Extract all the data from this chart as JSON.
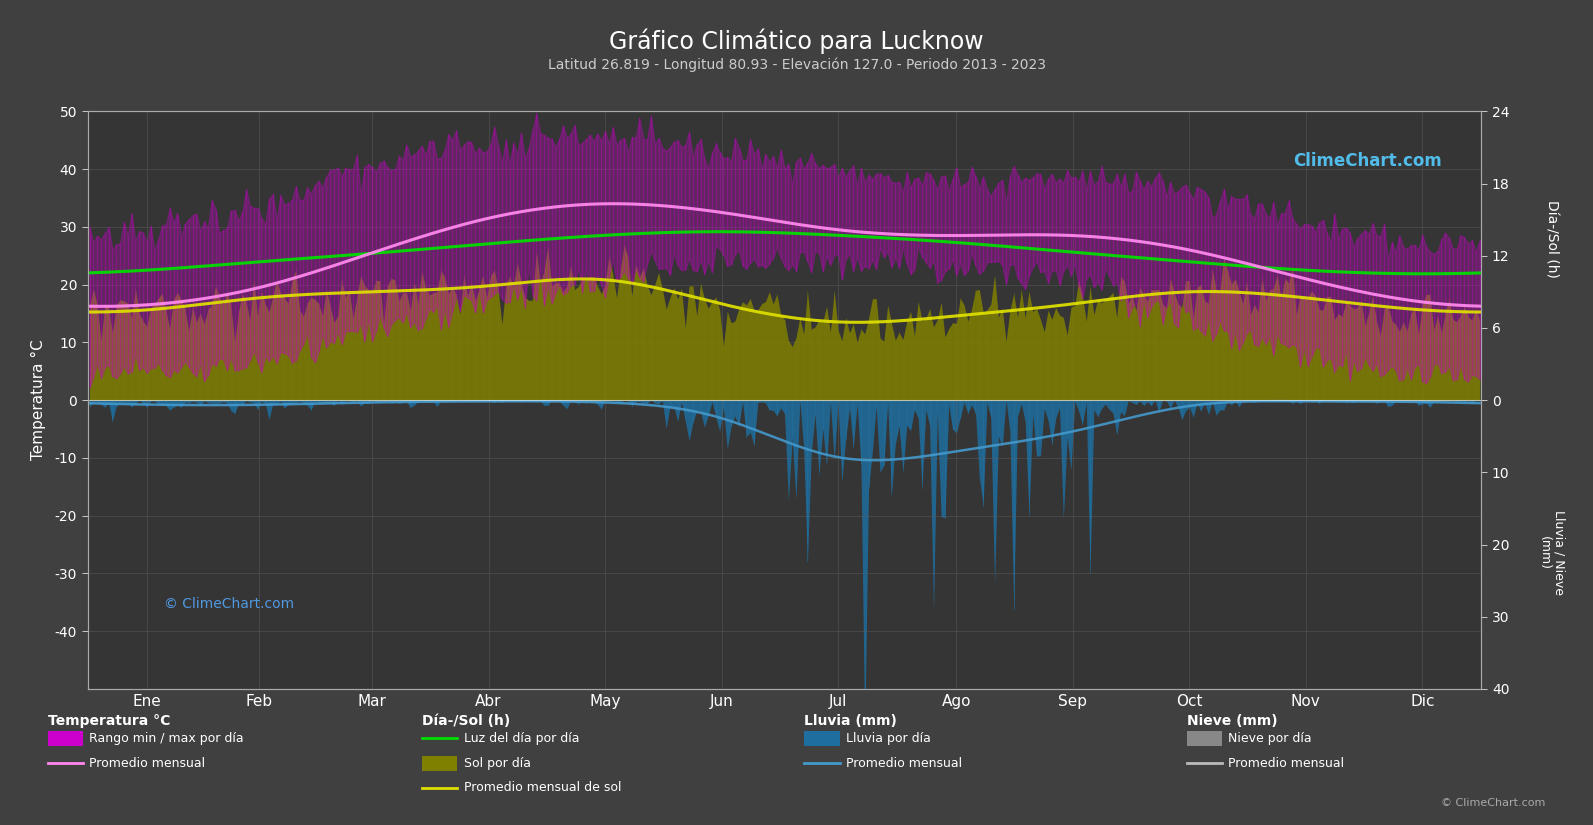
{
  "title": "Gráfico Climático para Lucknow",
  "subtitle": "Latitud 26.819 - Longitud 80.93 - Elevación 127.0 - Periodo 2013 - 2023",
  "months": [
    "Ene",
    "Feb",
    "Mar",
    "Abr",
    "May",
    "Jun",
    "Jul",
    "Ago",
    "Sep",
    "Oct",
    "Nov",
    "Dic"
  ],
  "background_color": "#404040",
  "plot_bg_color": "#353535",
  "temp_avg_monthly": [
    16.5,
    19.5,
    25.5,
    31.5,
    34.0,
    32.5,
    29.5,
    28.5,
    28.5,
    26.0,
    21.0,
    17.0
  ],
  "temp_max_monthly": [
    22.5,
    26.0,
    33.0,
    39.0,
    41.5,
    38.5,
    33.5,
    32.5,
    32.5,
    31.0,
    27.0,
    22.5
  ],
  "temp_min_monthly": [
    9.5,
    12.0,
    17.0,
    23.5,
    26.5,
    27.0,
    26.0,
    25.5,
    24.5,
    19.5,
    13.5,
    9.5
  ],
  "temp_max_daily_high": [
    29,
    33,
    41,
    45,
    46,
    43,
    40,
    38,
    38,
    36,
    31,
    27
  ],
  "temp_min_daily_low": [
    5,
    7,
    12,
    17,
    21,
    24,
    24,
    23,
    21,
    14,
    8,
    5
  ],
  "daylight_monthly": [
    10.8,
    11.5,
    12.2,
    13.0,
    13.7,
    14.0,
    13.7,
    13.1,
    12.3,
    11.5,
    10.8,
    10.5
  ],
  "sunshine_monthly": [
    7.5,
    8.5,
    9.0,
    9.5,
    10.0,
    8.0,
    6.5,
    7.0,
    8.0,
    9.0,
    8.5,
    7.5
  ],
  "rain_monthly": [
    19,
    18,
    10,
    5,
    10,
    75,
    245,
    220,
    130,
    25,
    5,
    8
  ],
  "snow_monthly": [
    0,
    0,
    0,
    0,
    0,
    0,
    0,
    0,
    0,
    0,
    0,
    0
  ],
  "grid_color": "#606060",
  "daylight_color": "#00dd00",
  "sunshine_fill_color": "#808000",
  "sunshine_line_color": "#dddd00",
  "rain_fill_color": "#1e6ea0",
  "rain_line_color": "#4499cc",
  "snow_fill_color": "#999999",
  "snow_line_color": "#cccccc",
  "temp_range_line_color": "#dd00dd",
  "temp_avg_line_color": "#ff88ee",
  "ylabel_left": "Temperatura °C",
  "ylabel_right_top": "Día-/Sol (h)",
  "ylabel_right_bot": "Lluvia / Nieve\n(mm)"
}
